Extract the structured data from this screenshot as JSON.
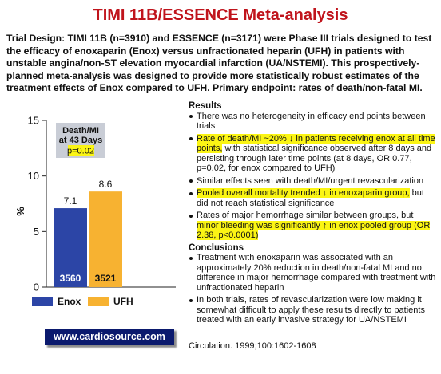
{
  "title": "TIMI 11B/ESSENCE Meta-analysis",
  "trial_design": "Trial Design: TIMI 11B (n=3910) and ESSENCE (n=3171) were Phase III trials designed to test the efficacy of enoxaparin (Enox) versus unfractionated heparin (UFH) in patients with unstable angina/non-ST elevation myocardial infarction (UA/NSTEMI). This prospectively-planned meta-analysis was designed to provide more statistically robust estimates of the treatment effects of Enox compared to UFH. Primary endpoint: rates of death/non-fatal MI.",
  "chart_data": {
    "type": "bar",
    "categories": [
      "Enox",
      "UFH"
    ],
    "values": [
      7.1,
      8.6
    ],
    "value_labels": [
      "7.1",
      "8.6"
    ],
    "n_labels": [
      "3560",
      "3521"
    ],
    "ylabel": "%",
    "ylim": [
      0,
      15
    ],
    "yticks": [
      "0",
      "5",
      "10",
      "15"
    ],
    "ytick_values": [
      0,
      5,
      10,
      15
    ],
    "annotation": {
      "line1": "Death/MI",
      "line2": "at 43 Days",
      "line3": "p=0.02"
    },
    "legend": [
      "Enox",
      "UFH"
    ],
    "legend_position": "bottom",
    "grid": false,
    "colors": {
      "Enox": "#2c45a6",
      "UFH": "#f7b231"
    }
  },
  "website": "www.cardiosource.com",
  "results": {
    "heading": "Results",
    "items": [
      {
        "text": "There was no heterogeneity in efficacy end points between trials"
      },
      {
        "hl": "Rate of death/MI ~20% ↓ in patients receiving enox at all time points,",
        "text": " with statistical significance observed after 8 days and persisting through later time points (at 8 days, OR 0.77, p=0.02, for enox compared to UFH)"
      },
      {
        "text": "Similar effects seen with death/MI/urgent revascularization"
      },
      {
        "hl": "Pooled overall mortality trended ↓ in enoxaparin group,",
        "text": " but did not reach statistical significance"
      },
      {
        "pre": "Rates of major hemorrhage similar between groups, but ",
        "hl": "minor bleeding was significantly ↑ in enox pooled group (OR 2.38, p<0.0001)"
      }
    ]
  },
  "conclusions": {
    "heading": "Conclusions",
    "items": [
      {
        "text": "Treatment with enoxaparin was associated with an approximately 20% reduction in death/non-fatal MI and no difference in major hemorrhage compared with treatment with unfractionated heparin"
      },
      {
        "text": "In both trials, rates of revascularization were low making it somewhat difficult to apply these results directly to patients treated with an early invasive strategy for UA/NSTEMI"
      }
    ]
  },
  "citation": "Circulation. 1999;100:1602-1608"
}
